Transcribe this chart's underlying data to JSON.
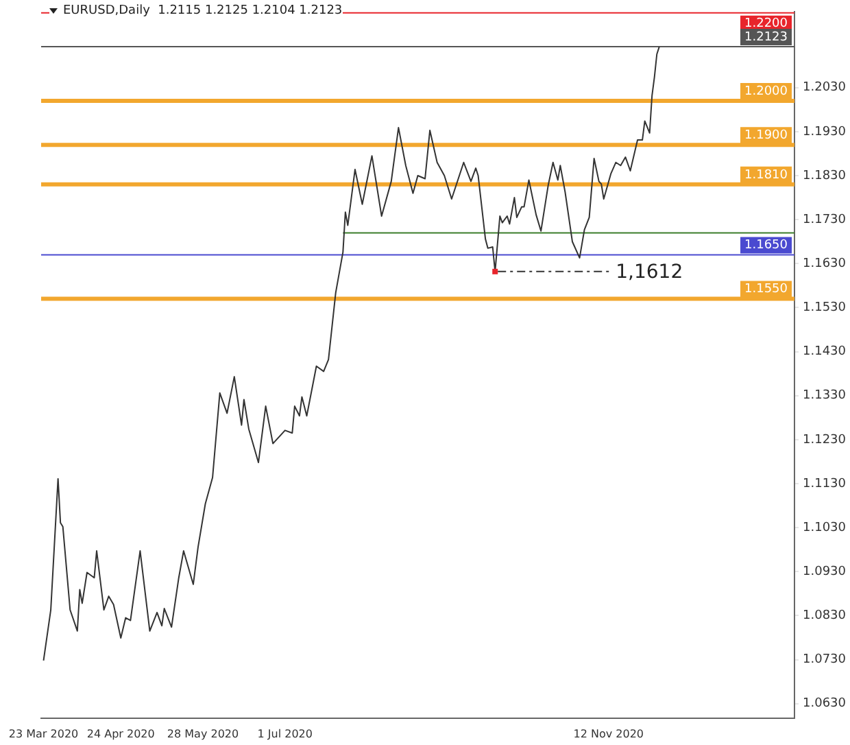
{
  "chart_data": {
    "type": "line",
    "title": "EURUSD,Daily  1.2115 1.2125 1.2104 1.2123",
    "marker": "none",
    "x": [
      "2020-03-23",
      "2020-03-26",
      "2020-03-29",
      "2020-03-30",
      "2020-03-31",
      "2020-04-03",
      "2020-04-06",
      "2020-04-07",
      "2020-04-08",
      "2020-04-10",
      "2020-04-13",
      "2020-04-14",
      "2020-04-17",
      "2020-04-19",
      "2020-04-21",
      "2020-04-24",
      "2020-04-26",
      "2020-04-28",
      "2020-05-02",
      "2020-05-06",
      "2020-05-09",
      "2020-05-11",
      "2020-05-12",
      "2020-05-15",
      "2020-05-18",
      "2020-05-20",
      "2020-05-24",
      "2020-05-26",
      "2020-05-29",
      "2020-06-01",
      "2020-06-04",
      "2020-06-07",
      "2020-06-10",
      "2020-06-13",
      "2020-06-14",
      "2020-06-16",
      "2020-06-20",
      "2020-06-23",
      "2020-06-26",
      "2020-07-01",
      "2020-07-04",
      "2020-07-05",
      "2020-07-07",
      "2020-07-08",
      "2020-07-10",
      "2020-07-14",
      "2020-07-17",
      "2020-07-19",
      "2020-07-22",
      "2020-07-25",
      "2020-07-26",
      "2020-07-27",
      "2020-07-30",
      "2020-08-02",
      "2020-08-06",
      "2020-08-10",
      "2020-08-14",
      "2020-08-17",
      "2020-08-20",
      "2020-08-23",
      "2020-08-25",
      "2020-08-28",
      "2020-08-30",
      "2020-09-02",
      "2020-09-05",
      "2020-09-08",
      "2020-09-13",
      "2020-09-16",
      "2020-09-18",
      "2020-09-19",
      "2020-09-22",
      "2020-09-23",
      "2020-09-25",
      "2020-09-26",
      "2020-09-28",
      "2020-09-29",
      "2020-10-01",
      "2020-10-02",
      "2020-10-04",
      "2020-10-05",
      "2020-10-07",
      "2020-10-08",
      "2020-10-10",
      "2020-10-13",
      "2020-10-15",
      "2020-10-18",
      "2020-10-20",
      "2020-10-22",
      "2020-10-23",
      "2020-10-25",
      "2020-10-28",
      "2020-10-31",
      "2020-11-02",
      "2020-11-04",
      "2020-11-06",
      "2020-11-08",
      "2020-11-09",
      "2020-11-10",
      "2020-11-13",
      "2020-11-15",
      "2020-11-17",
      "2020-11-19",
      "2020-11-21",
      "2020-11-24",
      "2020-11-26",
      "2020-11-27",
      "2020-11-29",
      "2020-11-30",
      "2020-12-01",
      "2020-12-02",
      "2020-12-03"
    ],
    "series": [
      {
        "color": "#333333",
        "values": [
          1.0728,
          1.0843,
          1.1141,
          1.1041,
          1.1032,
          1.0843,
          1.0795,
          1.0889,
          1.0858,
          1.0928,
          1.0916,
          1.0977,
          1.0843,
          1.0874,
          1.0855,
          1.0779,
          1.0825,
          1.0819,
          1.0977,
          1.0795,
          1.0837,
          1.0807,
          1.0846,
          1.0804,
          1.0916,
          1.0977,
          1.0901,
          1.0986,
          1.1084,
          1.1144,
          1.1336,
          1.129,
          1.1373,
          1.1263,
          1.1321,
          1.1254,
          1.1178,
          1.1306,
          1.1221,
          1.1251,
          1.1245,
          1.1306,
          1.1284,
          1.1327,
          1.1284,
          1.1397,
          1.1385,
          1.1412,
          1.1564,
          1.1656,
          1.1747,
          1.1717,
          1.1844,
          1.1765,
          1.1875,
          1.1738,
          1.1817,
          1.1939,
          1.1853,
          1.179,
          1.183,
          1.1823,
          1.1933,
          1.186,
          1.183,
          1.1777,
          1.186,
          1.1817,
          1.1847,
          1.183,
          1.1686,
          1.1665,
          1.1668,
          1.1612,
          1.1738,
          1.1723,
          1.1738,
          1.172,
          1.178,
          1.1735,
          1.1759,
          1.1759,
          1.182,
          1.1741,
          1.1704,
          1.1808,
          1.186,
          1.182,
          1.1853,
          1.1793,
          1.168,
          1.1643,
          1.1707,
          1.1735,
          1.1869,
          1.1817,
          1.1811,
          1.1777,
          1.1835,
          1.186,
          1.1853,
          1.1872,
          1.1841,
          1.1911,
          1.1911,
          1.1954,
          1.1927,
          1.2012,
          1.2054,
          1.2106,
          1.2123
        ]
      },
      {
        "type": "line",
        "color": "#3a7d2a",
        "x": [
          "2020-07-25",
          "2021-01-28"
        ],
        "values": [
          1.17,
          1.17
        ]
      }
    ],
    "xlim": [
      "2020-03-22",
      "2021-01-28"
    ],
    "xticks": [
      {
        "value": "2020-03-23",
        "label": "23 Mar 2020"
      },
      {
        "value": "2020-04-24",
        "label": "24 Apr 2020"
      },
      {
        "value": "2020-05-28",
        "label": "28 May 2020"
      },
      {
        "value": "2020-07-01",
        "label": "1 Jul 2020"
      },
      {
        "value": "2020-11-12",
        "label": "12 Nov 2020"
      }
    ],
    "ylim": [
      1.0597,
      1.2203
    ],
    "yticks": [
      {
        "value": 1.063,
        "label": "1.0630"
      },
      {
        "value": 1.073,
        "label": "1.0730"
      },
      {
        "value": 1.083,
        "label": "1.0830"
      },
      {
        "value": 1.093,
        "label": "1.0930"
      },
      {
        "value": 1.103,
        "label": "1.1030"
      },
      {
        "value": 1.113,
        "label": "1.1130"
      },
      {
        "value": 1.123,
        "label": "1.1230"
      },
      {
        "value": 1.133,
        "label": "1.1330"
      },
      {
        "value": 1.143,
        "label": "1.1430"
      },
      {
        "value": 1.153,
        "label": "1.1530"
      },
      {
        "value": 1.163,
        "label": "1.1630"
      },
      {
        "value": 1.173,
        "label": "1.1730"
      },
      {
        "value": 1.183,
        "label": "1.1830"
      },
      {
        "value": 1.193,
        "label": "1.1930"
      },
      {
        "value": 1.203,
        "label": "1.2030"
      }
    ],
    "ref_lines": [
      {
        "axis": "y",
        "value": 1.22,
        "label": "1.2200",
        "color": "#e8242b"
      },
      {
        "axis": "y",
        "value": 1.2123,
        "label": "1.2123",
        "color": "#555555"
      },
      {
        "axis": "y",
        "value": 1.2,
        "label": "1.2000",
        "color": "#f2a72e"
      },
      {
        "axis": "y",
        "value": 1.19,
        "label": "1.1900",
        "color": "#f2a72e"
      },
      {
        "axis": "y",
        "value": 1.181,
        "label": "1.1810",
        "color": "#f2a72e"
      },
      {
        "axis": "y",
        "value": 1.165,
        "label": "1.1650",
        "color": "#4a4ad0"
      },
      {
        "axis": "y",
        "value": 1.155,
        "label": "1.1550",
        "color": "#f2a72e"
      }
    ],
    "annotations": [
      {
        "text": "1,1612",
        "x": "2020-09-26",
        "y": 1.1612
      }
    ]
  }
}
